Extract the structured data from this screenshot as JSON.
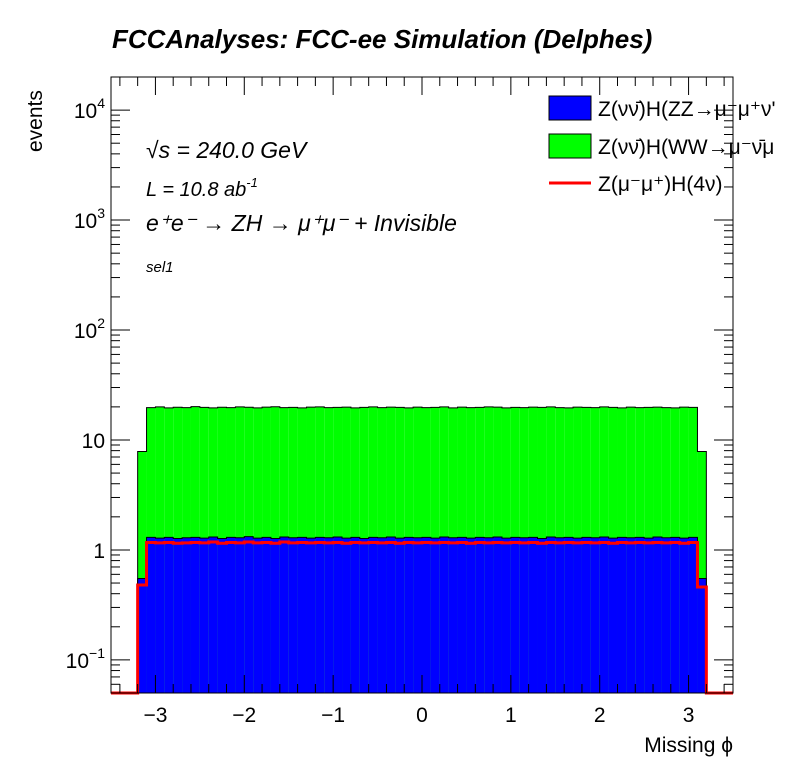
{
  "title": "FCCAnalyses: FCC-ee Simulation (Delphes)",
  "annotations": {
    "sqrt_s_symbol": "√s",
    "sqrt_s": " = 240.0 GeV",
    "lumi": "L = 10.8 ab",
    "lumi_exp": "-1",
    "process": "e⁺e⁻ → ZH → μ⁺μ⁻ + Invisible",
    "selection": "sel1"
  },
  "legend_labels": [
    "Z(νν̄)H(ZZ→μ⁻μ⁺ν'",
    "Z(νν̄)H(WW→μ⁻ν̄μ",
    "Z(μ⁻μ⁺)H(4ν)"
  ],
  "chart_data": {
    "type": "area",
    "stacked": true,
    "title": "FCCAnalyses: FCC-ee Simulation (Delphes)",
    "xlabel": "Missing ϕ",
    "ylabel": "events",
    "xlim": [
      -3.5,
      3.5
    ],
    "ylim": [
      0.05,
      20000
    ],
    "y_scale": "log",
    "x_ticks": [
      -3,
      -2,
      -1,
      0,
      1,
      2,
      3
    ],
    "x_tick_labels": [
      "−3",
      "−2",
      "−1",
      "0",
      "1",
      "2",
      "3"
    ],
    "y_ticks": [
      0.1,
      1,
      10,
      100,
      1000,
      10000
    ],
    "y_tick_labels": [
      {
        "base": "10",
        "exp": "−1"
      },
      {
        "base": "1",
        "exp": ""
      },
      {
        "base": "10",
        "exp": ""
      },
      {
        "base": "10",
        "exp": "2"
      },
      {
        "base": "10",
        "exp": "3"
      },
      {
        "base": "10",
        "exp": "4"
      }
    ],
    "bin_edges": [
      -3.5,
      -3.2,
      -3.1,
      -3.0,
      -2.9,
      -2.8,
      -2.7,
      -2.6,
      -2.5,
      -2.4,
      -2.3,
      -2.2,
      -2.1,
      -2.0,
      -1.9,
      -1.8,
      -1.7,
      -1.6,
      -1.5,
      -1.4,
      -1.3,
      -1.2,
      -1.1,
      -1.0,
      -0.9,
      -0.8,
      -0.7,
      -0.6,
      -0.5,
      -0.4,
      -0.3,
      -0.2,
      -0.1,
      0.0,
      0.1,
      0.2,
      0.3,
      0.4,
      0.5,
      0.6,
      0.7,
      0.8,
      0.9,
      1.0,
      1.1,
      1.2,
      1.3,
      1.4,
      1.5,
      1.6,
      1.7,
      1.8,
      1.9,
      2.0,
      2.1,
      2.2,
      2.3,
      2.4,
      2.5,
      2.6,
      2.7,
      2.8,
      2.9,
      3.0,
      3.1,
      3.2,
      3.5
    ],
    "series": [
      {
        "name": "Z(νν̄)H(ZZ→μ⁻μ⁺ν'",
        "color": "#0000ff",
        "style": "fill",
        "values": [
          0,
          0.55,
          1.3,
          1.28,
          1.3,
          1.27,
          1.29,
          1.3,
          1.28,
          1.31,
          1.27,
          1.3,
          1.29,
          1.32,
          1.28,
          1.3,
          1.27,
          1.31,
          1.29,
          1.3,
          1.28,
          1.3,
          1.29,
          1.31,
          1.28,
          1.3,
          1.27,
          1.3,
          1.29,
          1.31,
          1.28,
          1.3,
          1.29,
          1.3,
          1.28,
          1.31,
          1.29,
          1.3,
          1.28,
          1.3,
          1.29,
          1.31,
          1.28,
          1.3,
          1.29,
          1.3,
          1.27,
          1.31,
          1.29,
          1.3,
          1.28,
          1.3,
          1.29,
          1.31,
          1.28,
          1.3,
          1.29,
          1.3,
          1.28,
          1.31,
          1.29,
          1.3,
          1.28,
          1.3,
          0.55,
          0
        ]
      },
      {
        "name": "Z(νν̄)H(WW→μ⁻ν̄μ",
        "color": "#00ff00",
        "style": "fill",
        "values": [
          0,
          7.3,
          18.4,
          18.7,
          18.3,
          18.6,
          18.4,
          18.8,
          18.5,
          18.3,
          18.6,
          18.4,
          18.7,
          18.5,
          18.3,
          18.6,
          18.8,
          18.4,
          18.5,
          18.3,
          18.6,
          18.7,
          18.4,
          18.5,
          18.6,
          18.3,
          18.5,
          18.7,
          18.4,
          18.6,
          18.5,
          18.3,
          18.6,
          18.4,
          18.5,
          18.7,
          18.3,
          18.6,
          18.4,
          18.5,
          18.7,
          18.6,
          18.3,
          18.5,
          18.4,
          18.6,
          18.5,
          18.7,
          18.4,
          18.3,
          18.6,
          18.5,
          18.4,
          18.7,
          18.5,
          18.3,
          18.6,
          18.4,
          18.5,
          18.6,
          18.4,
          18.3,
          18.6,
          18.5,
          7.3,
          0
        ]
      },
      {
        "name": "Z(μ⁻μ⁺)H(4ν)",
        "color": "#ff0000",
        "style": "line",
        "values": [
          0,
          0.48,
          1.17,
          1.16,
          1.17,
          1.15,
          1.16,
          1.17,
          1.16,
          1.18,
          1.15,
          1.17,
          1.16,
          1.18,
          1.16,
          1.17,
          1.15,
          1.18,
          1.16,
          1.17,
          1.16,
          1.17,
          1.16,
          1.17,
          1.15,
          1.17,
          1.16,
          1.17,
          1.16,
          1.17,
          1.15,
          1.17,
          1.16,
          1.17,
          1.16,
          1.17,
          1.16,
          1.17,
          1.15,
          1.17,
          1.16,
          1.17,
          1.16,
          1.17,
          1.16,
          1.17,
          1.15,
          1.17,
          1.16,
          1.17,
          1.16,
          1.17,
          1.16,
          1.17,
          1.15,
          1.17,
          1.16,
          1.17,
          1.16,
          1.17,
          1.16,
          1.17,
          1.15,
          1.17,
          0.46,
          0
        ]
      }
    ],
    "legend": "top-right",
    "grid": false
  }
}
